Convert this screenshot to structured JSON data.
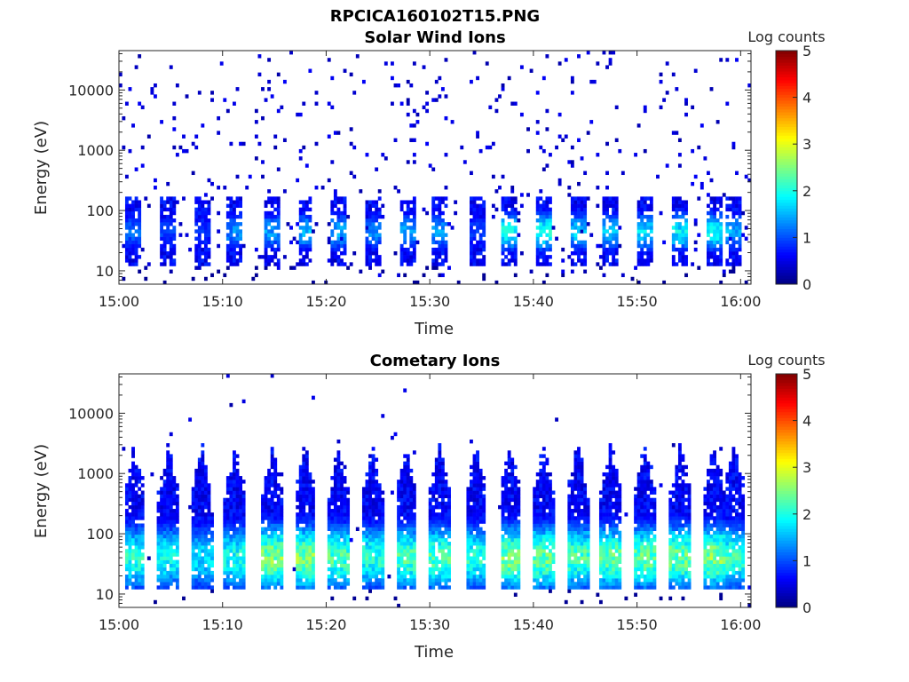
{
  "figure_title": "RPCICA160102T15.PNG",
  "colormap": "jet",
  "chart_data": [
    {
      "type": "heatmap",
      "title": "Solar Wind Ions",
      "xlabel": "Time",
      "ylabel": "Energy (eV)",
      "y_scale": "log",
      "x_ticks": [
        "15:00",
        "15:10",
        "15:20",
        "15:30",
        "15:40",
        "15:50",
        "16:00"
      ],
      "y_ticks": [
        "10",
        "100",
        "1000",
        "10000"
      ],
      "ylim": [
        6,
        45000
      ],
      "colorbar": {
        "label": "Log counts",
        "min": 0,
        "max": 5,
        "ticks": [
          "0",
          "1",
          "2",
          "3",
          "4",
          "5"
        ]
      },
      "event_minutes": [
        1.5,
        4.8,
        8.0,
        11.2,
        14.8,
        18.0,
        21.2,
        24.5,
        27.8,
        31.0,
        34.5,
        37.8,
        41.0,
        44.3,
        47.5,
        50.8,
        54.2,
        57.5,
        59.4
      ],
      "event_peak_log_counts": [
        1.3,
        1.1,
        1.0,
        1.5,
        1.6,
        1.8,
        1.7,
        1.5,
        1.6,
        1.6,
        1.1,
        2.2,
        2.3,
        1.9,
        1.8,
        2.0,
        2.1,
        2.2,
        1.7
      ],
      "peak_energy_eV": 45,
      "background_note_log_counts": 0.3
    },
    {
      "type": "heatmap",
      "title": "Cometary Ions",
      "xlabel": "Time",
      "ylabel": "Energy (eV)",
      "y_scale": "log",
      "x_ticks": [
        "15:00",
        "15:10",
        "15:20",
        "15:30",
        "15:40",
        "15:50",
        "16:00"
      ],
      "y_ticks": [
        "10",
        "100",
        "1000",
        "10000"
      ],
      "ylim": [
        6,
        45000
      ],
      "colorbar": {
        "label": "Log counts",
        "min": 0,
        "max": 5,
        "ticks": [
          "0",
          "1",
          "2",
          "3",
          "4",
          "5"
        ]
      },
      "event_minutes": [
        1.5,
        4.8,
        8.0,
        11.2,
        14.8,
        18.0,
        21.2,
        24.5,
        27.8,
        31.0,
        34.5,
        37.8,
        41.0,
        44.3,
        47.5,
        50.8,
        54.2,
        57.5,
        59.4
      ],
      "event_peak_log_counts": [
        2.4,
        2.2,
        2.0,
        2.3,
        2.9,
        2.9,
        2.6,
        2.4,
        2.6,
        2.6,
        2.4,
        2.9,
        2.8,
        2.6,
        2.7,
        2.7,
        2.8,
        2.9,
        2.5
      ],
      "peak_energy_eV": 40,
      "background_note_log_counts": 0.3
    }
  ]
}
